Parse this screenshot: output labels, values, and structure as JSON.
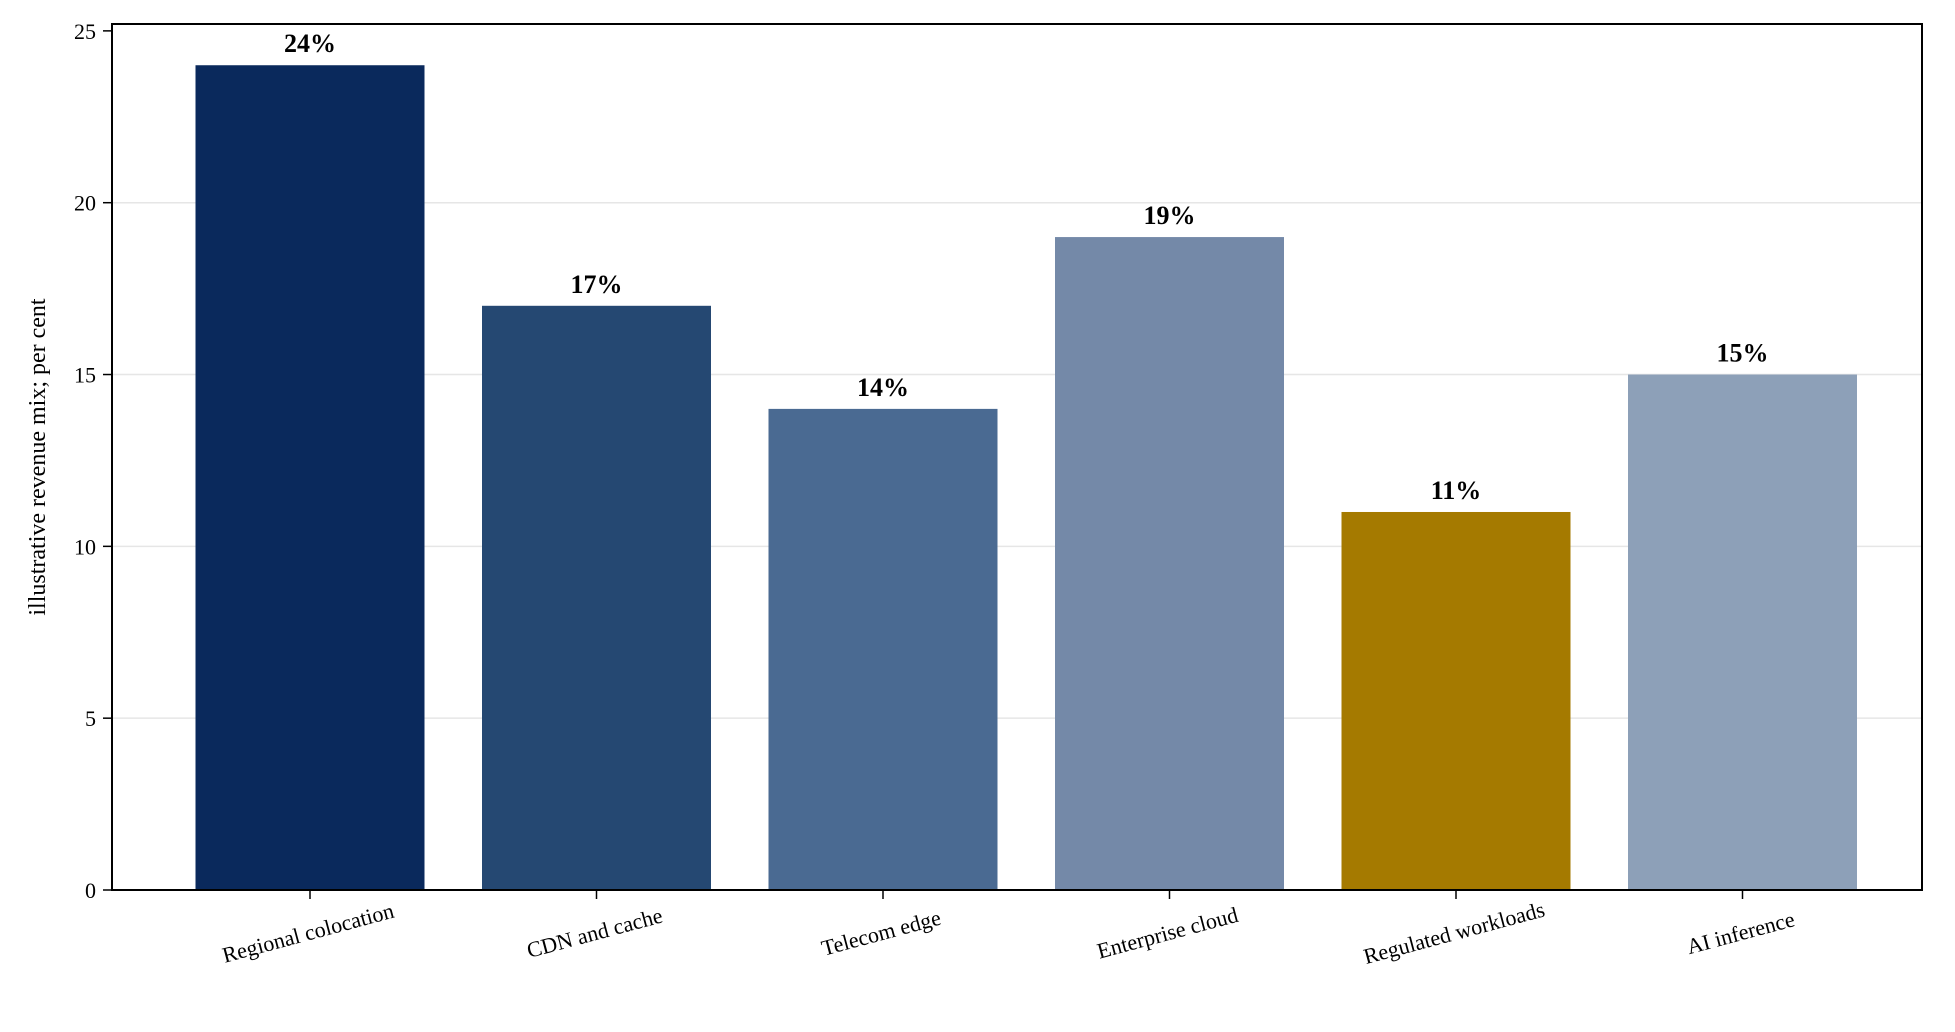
{
  "chart_data": {
    "type": "bar",
    "title": "",
    "xlabel": "",
    "ylabel": "illustrative revenue mix; per cent",
    "ylim": [
      0,
      25.2
    ],
    "yticks": [
      0,
      5,
      10,
      15,
      20,
      25
    ],
    "grid": "horizontal",
    "categories": [
      "Regional colocation",
      "CDN and cache",
      "Telecom edge",
      "Enterprise cloud",
      "Regulated workloads",
      "AI inference"
    ],
    "values": [
      24,
      17,
      14,
      19,
      11,
      15
    ],
    "data_labels": [
      "24%",
      "17%",
      "14%",
      "19%",
      "11%",
      "15%"
    ],
    "colors": [
      "#0a295c",
      "#254872",
      "#4a6a92",
      "#7489a8",
      "#a57a00",
      "#8da0b8"
    ]
  }
}
